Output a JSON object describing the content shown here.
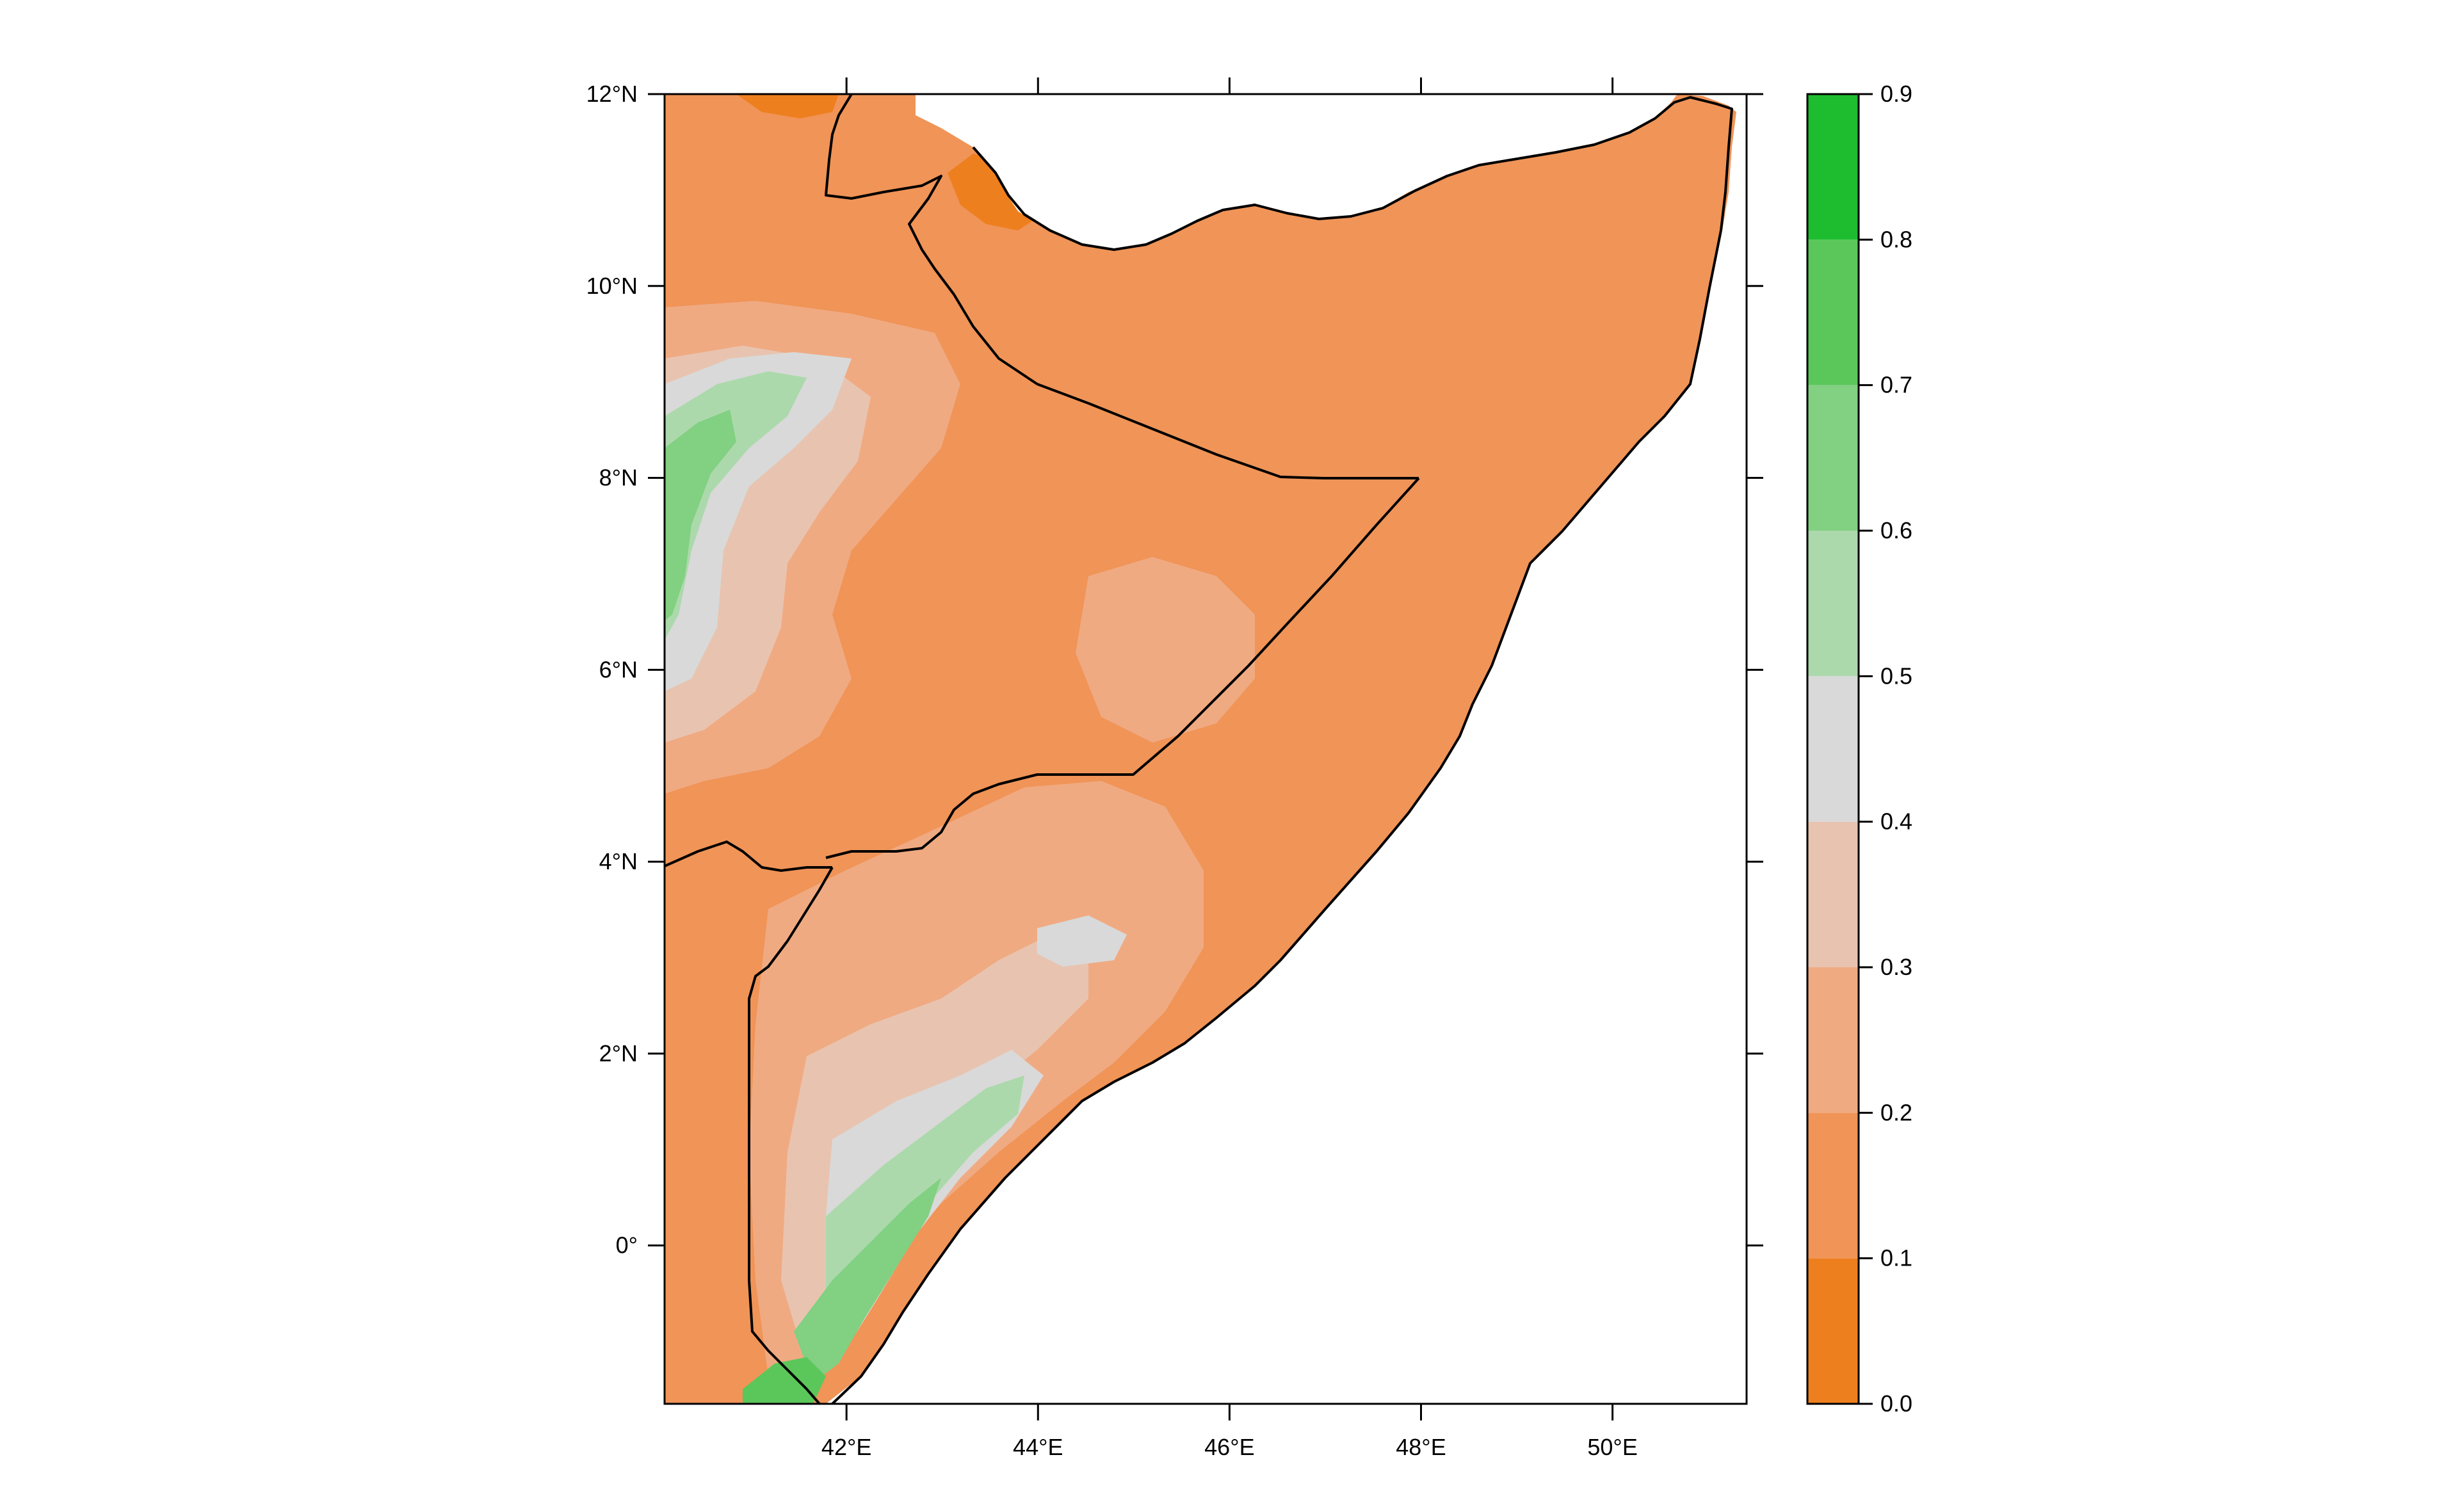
{
  "map": {
    "x_ticks": [
      {
        "lon": 42,
        "label": "42°E"
      },
      {
        "lon": 44,
        "label": "44°E"
      },
      {
        "lon": 46,
        "label": "46°E"
      },
      {
        "lon": 48,
        "label": "48°E"
      },
      {
        "lon": 50,
        "label": "50°E"
      }
    ],
    "y_ticks": [
      {
        "lat": 12,
        "label": "12°N"
      },
      {
        "lat": 10,
        "label": "10°N"
      },
      {
        "lat": 8,
        "label": "8°N"
      },
      {
        "lat": 6,
        "label": "6°N"
      },
      {
        "lat": 4,
        "label": "4°N"
      },
      {
        "lat": 2,
        "label": "2°N"
      },
      {
        "lat": 0,
        "label": "0°"
      }
    ],
    "lon_range": [
      40.1,
      51.4
    ],
    "lat_range": [
      -1.65,
      12.0
    ],
    "colors": {
      "ocean": "#ffffff",
      "border": "#000000"
    }
  },
  "legend": {
    "bins": [
      {
        "from": 0.0,
        "to": 0.1,
        "color": "#ee7f1f"
      },
      {
        "from": 0.1,
        "to": 0.2,
        "color": "#f09457"
      },
      {
        "from": 0.2,
        "to": 0.3,
        "color": "#f0aa82"
      },
      {
        "from": 0.3,
        "to": 0.4,
        "color": "#e8c4b0"
      },
      {
        "from": 0.4,
        "to": 0.5,
        "color": "#d9d9d9"
      },
      {
        "from": 0.5,
        "to": 0.6,
        "color": "#acd9ac"
      },
      {
        "from": 0.6,
        "to": 0.7,
        "color": "#82d082"
      },
      {
        "from": 0.7,
        "to": 0.8,
        "color": "#5bc75b"
      },
      {
        "from": 0.8,
        "to": 0.9,
        "color": "#1dbd2f"
      }
    ],
    "tick_labels": [
      "0.0",
      "0.1",
      "0.2",
      "0.3",
      "0.4",
      "0.5",
      "0.6",
      "0.7",
      "0.8",
      "0.9"
    ]
  }
}
